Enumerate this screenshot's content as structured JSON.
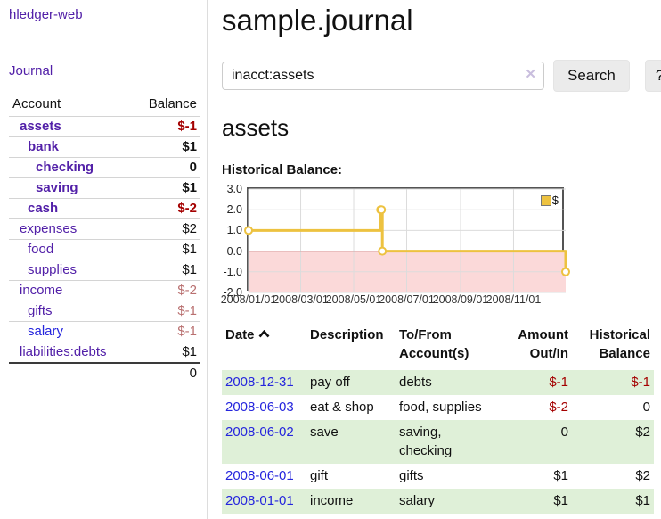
{
  "app": {
    "brand": "hledger-web",
    "nav_journal": "Journal"
  },
  "sidebar": {
    "headers": {
      "account": "Account",
      "balance": "Balance"
    },
    "accounts": [
      {
        "name": "assets",
        "balance": "$-1"
      },
      {
        "name": "bank",
        "balance": "$1"
      },
      {
        "name": "checking",
        "balance": "0"
      },
      {
        "name": "saving",
        "balance": "$1"
      },
      {
        "name": "cash",
        "balance": "$-2"
      },
      {
        "name": "expenses",
        "balance": "$2"
      },
      {
        "name": "food",
        "balance": "$1"
      },
      {
        "name": "supplies",
        "balance": "$1"
      },
      {
        "name": "income",
        "balance": "$-2"
      },
      {
        "name": "gifts",
        "balance": "$-1"
      },
      {
        "name": "salary",
        "balance": "$-1"
      },
      {
        "name": "liabilities:debts",
        "balance": "$1"
      }
    ],
    "total": "0"
  },
  "main": {
    "title": "sample.journal",
    "search": {
      "value": "inacct:assets",
      "clear_icon": "✕",
      "button": "Search",
      "help_button": "?"
    },
    "account_heading": "assets",
    "chart_heading": "Historical Balance:"
  },
  "chart_data": {
    "type": "line",
    "step": true,
    "title": "Historical Balance:",
    "series": [
      {
        "name": "$",
        "x_dates": [
          "2008-01-01",
          "2008-06-01",
          "2008-06-02",
          "2008-06-03",
          "2008-12-31"
        ],
        "x_days": [
          0,
          152,
          153,
          154,
          365
        ],
        "values": [
          1,
          2,
          2,
          0,
          -1
        ]
      }
    ],
    "ylim": [
      -2,
      3
    ],
    "yticks": [
      3.0,
      2.0,
      1.0,
      0.0,
      -1.0,
      -2.0
    ],
    "x_range_days": [
      0,
      365
    ],
    "xticks": [
      {
        "label": "2008/01/01",
        "day": 0
      },
      {
        "label": "2008/03/01",
        "day": 60
      },
      {
        "label": "2008/05/01",
        "day": 121
      },
      {
        "label": "2008/07/01",
        "day": 182
      },
      {
        "label": "2008/09/01",
        "day": 244
      },
      {
        "label": "2008/11/01",
        "day": 305
      }
    ],
    "legend": {
      "position": "top-right",
      "label": "$"
    },
    "grid": true,
    "colors": {
      "line": "#EDC240",
      "marker_fill": "#ffffff",
      "negative_area": "#fbd9d9",
      "zero_line": "#8b0000",
      "grid": "#dcdcdc",
      "border": "#545454"
    }
  },
  "register": {
    "sort_icon": "chevron-up",
    "headers": {
      "date": "Date",
      "description": "Description",
      "accounts": "To/From Account(s)",
      "amount": "Amount Out/In",
      "balance": "Historical Balance"
    },
    "rows": [
      {
        "date": "2008-12-31",
        "description": "pay off",
        "accounts": "debts",
        "amount": "$-1",
        "balance": "$-1"
      },
      {
        "date": "2008-06-03",
        "description": "eat & shop",
        "accounts": "food, supplies",
        "amount": "$-2",
        "balance": "0"
      },
      {
        "date": "2008-06-02",
        "description": "save",
        "accounts": "saving,\nchecking",
        "amount": "0",
        "balance": "$2"
      },
      {
        "date": "2008-06-01",
        "description": "gift",
        "accounts": "gifts",
        "amount": "$1",
        "balance": "$2"
      },
      {
        "date": "2008-01-01",
        "description": "income",
        "accounts": "salary",
        "amount": "$1",
        "balance": "$1"
      }
    ]
  }
}
